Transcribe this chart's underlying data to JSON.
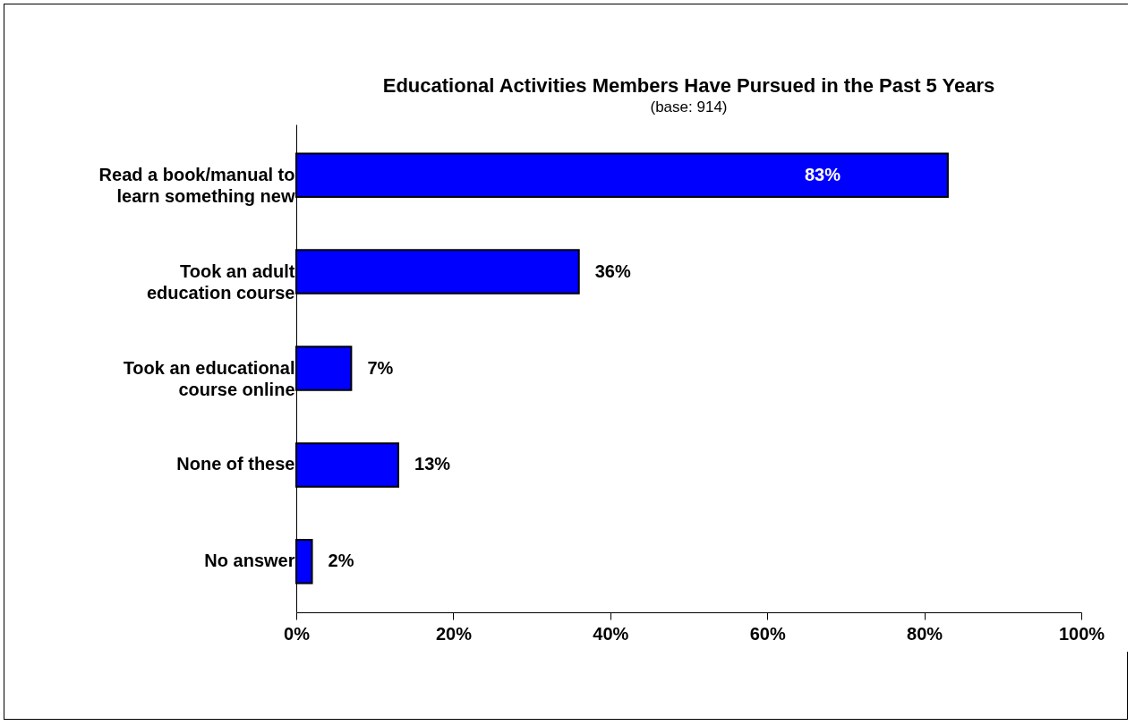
{
  "chart_data": {
    "type": "bar",
    "orientation": "horizontal",
    "title": "Educational Activities Members Have Pursued in the Past 5 Years",
    "subtitle": "(base: 914)",
    "categories": [
      "Read a book/manual to learn something new",
      "Took an adult education course",
      "Took an educational course online",
      "None of these",
      "No answer"
    ],
    "values": [
      83,
      36,
      7,
      13,
      2
    ],
    "value_labels": [
      "83%",
      "36%",
      "7%",
      "13%",
      "2%"
    ],
    "color": "#0000ff",
    "xlim": [
      0,
      100
    ],
    "xticks": [
      {
        "value": 0,
        "label": "0%"
      },
      {
        "value": 20,
        "label": "20%"
      },
      {
        "value": 40,
        "label": "40%"
      },
      {
        "value": 60,
        "label": "60%"
      },
      {
        "value": 80,
        "label": "80%"
      },
      {
        "value": 100,
        "label": "100%"
      }
    ],
    "grid": false
  }
}
